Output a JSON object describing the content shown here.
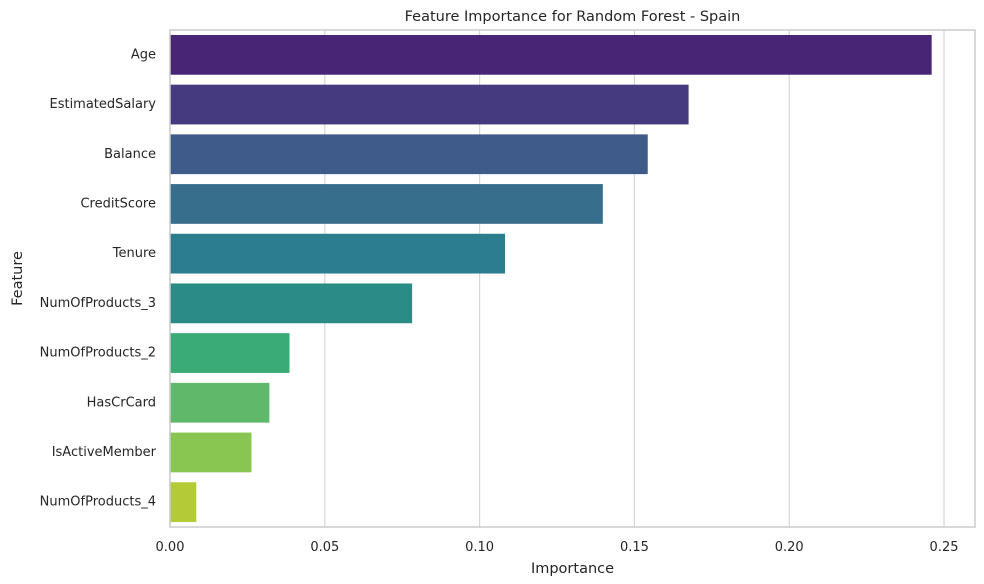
{
  "chart_data": {
    "type": "bar",
    "orientation": "horizontal",
    "title": "Feature Importance for Random Forest - Spain",
    "xlabel": "Importance",
    "ylabel": "Feature",
    "categories": [
      "Age",
      "EstimatedSalary",
      "Balance",
      "CreditScore",
      "Tenure",
      "NumOfProducts_3",
      "NumOfProducts_2",
      "HasCrCard",
      "IsActiveMember",
      "NumOfProducts_4"
    ],
    "values": [
      0.246,
      0.1675,
      0.1543,
      0.1398,
      0.1082,
      0.0782,
      0.0386,
      0.0321,
      0.0263,
      0.0085
    ],
    "xlim": [
      0,
      0.26
    ],
    "xticks": [
      0.0,
      0.05,
      0.1,
      0.15,
      0.2,
      0.25
    ],
    "xtick_labels": [
      "0.00",
      "0.05",
      "0.10",
      "0.15",
      "0.20",
      "0.25"
    ],
    "colors": [
      "#482575",
      "#45397f",
      "#3f5b8a",
      "#366e8c",
      "#2c7e8e",
      "#2b8c85",
      "#3aaa76",
      "#60b86a",
      "#88c651",
      "#b4cb37"
    ],
    "grid": "x",
    "frame_color": "#cccccc",
    "grid_color": "#d5d5d5"
  }
}
